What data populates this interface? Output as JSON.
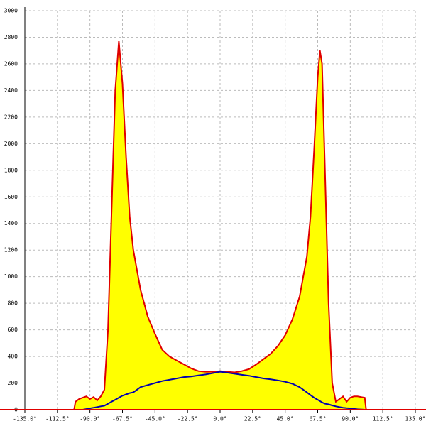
{
  "chart_data": {
    "type": "area",
    "x": [
      -101,
      -100,
      -97.5,
      -95,
      -92.5,
      -90,
      -87.5,
      -85,
      -82.5,
      -80,
      -77.5,
      -75,
      -72.5,
      -70,
      -67.5,
      -65,
      -62.5,
      -60,
      -57.5,
      -55,
      -50,
      -45,
      -40,
      -35,
      -30,
      -25,
      -20,
      -15,
      -10,
      -5,
      0,
      5,
      10,
      15,
      20,
      25,
      30,
      35,
      40,
      45,
      50,
      55,
      60,
      62.5,
      65,
      67.5,
      69,
      70.5,
      72.5,
      75,
      77.5,
      80,
      82.5,
      85,
      87.5,
      90,
      92.5,
      95,
      100,
      101
    ],
    "series": [
      {
        "color": "#e00000",
        "fill": "#ffff00",
        "values": [
          0,
          60,
          80,
          90,
          100,
          80,
          95,
          70,
          100,
          150,
          600,
          1500,
          2400,
          2770,
          2450,
          1900,
          1450,
          1200,
          1050,
          900,
          700,
          570,
          450,
          400,
          370,
          340,
          310,
          290,
          285,
          285,
          290,
          285,
          280,
          290,
          305,
          340,
          380,
          420,
          480,
          560,
          680,
          850,
          1150,
          1450,
          1950,
          2500,
          2700,
          2600,
          1800,
          800,
          200,
          60,
          80,
          100,
          60,
          90,
          100,
          100,
          90,
          0
        ]
      },
      {
        "color": "#0000b0",
        "values": [
          null,
          null,
          null,
          0,
          5,
          10,
          15,
          20,
          25,
          30,
          45,
          60,
          75,
          90,
          105,
          115,
          125,
          130,
          150,
          170,
          185,
          200,
          215,
          225,
          235,
          245,
          250,
          258,
          265,
          275,
          285,
          278,
          270,
          262,
          255,
          245,
          235,
          228,
          220,
          210,
          195,
          170,
          130,
          110,
          90,
          75,
          65,
          55,
          45,
          40,
          32,
          25,
          20,
          15,
          12,
          10,
          6,
          3,
          0,
          null
        ]
      }
    ],
    "xlim": [
      -135,
      135
    ],
    "xticks": [
      {
        "value": -135,
        "label": "-135.0°"
      },
      {
        "value": -112.5,
        "label": "-112.5°"
      },
      {
        "value": -90,
        "label": "-90.0°"
      },
      {
        "value": -67.5,
        "label": "-67.5°"
      },
      {
        "value": -45,
        "label": "-45.0°"
      },
      {
        "value": -22.5,
        "label": "-22.5°"
      },
      {
        "value": 0,
        "label": "0.0°"
      },
      {
        "value": 22.5,
        "label": "22.5°"
      },
      {
        "value": 45,
        "label": "45.0°"
      },
      {
        "value": 67.5,
        "label": "67.5°"
      },
      {
        "value": 90,
        "label": "90.0°"
      },
      {
        "value": 112.5,
        "label": "112.5°"
      },
      {
        "value": 135,
        "label": "135.0°"
      }
    ],
    "ylim": [
      0,
      3000
    ],
    "yticks": [
      0,
      200,
      400,
      600,
      800,
      1000,
      1200,
      1400,
      1600,
      1800,
      2000,
      2200,
      2400,
      2600,
      2800,
      3000
    ],
    "grid": true
  }
}
